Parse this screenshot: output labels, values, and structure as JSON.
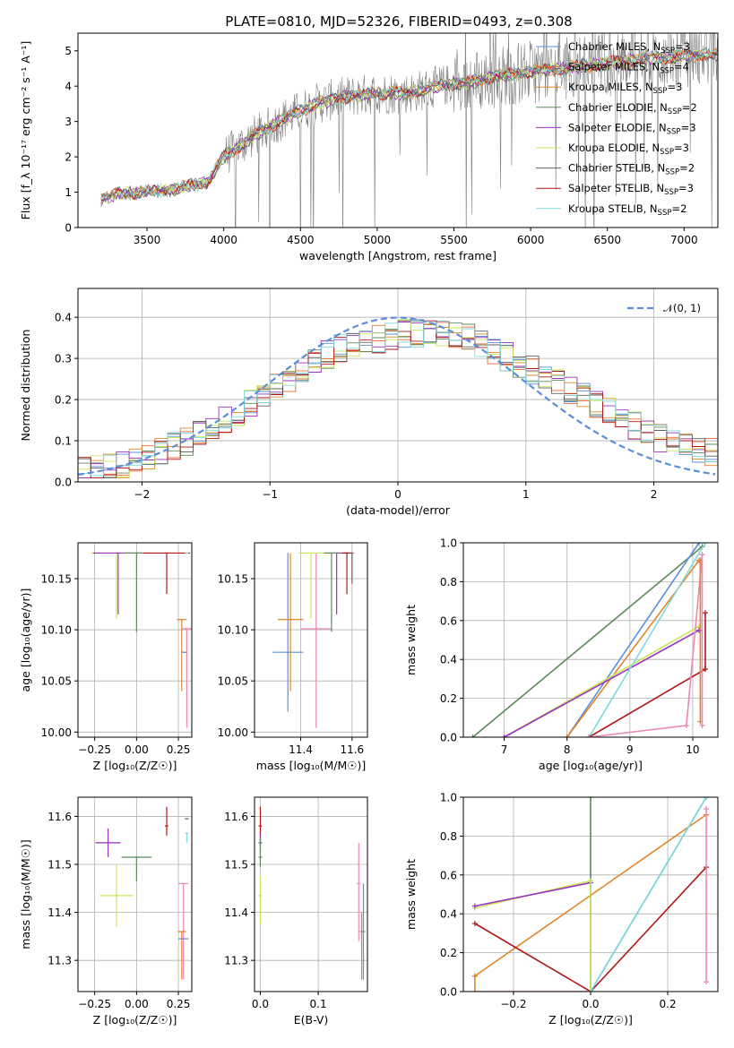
{
  "figure": {
    "title": "PLATE=0810, MJD=52326, FIBERID=0493, z=0.308"
  },
  "chart_data": [
    {
      "id": "spectrum",
      "type": "line",
      "xlabel": "wavelength [Angstrom, rest frame]",
      "ylabel": "Flux [f_λ 10⁻¹⁷ erg cm⁻² s⁻¹ A⁻¹]",
      "xlim": [
        3050,
        7220
      ],
      "ylim": [
        0,
        5.5
      ],
      "xticks": [
        "3500",
        "4000",
        "4500",
        "5000",
        "5500",
        "6000",
        "6500",
        "7000"
      ],
      "yticks": [
        "0",
        "1",
        "2",
        "3",
        "4",
        "5"
      ],
      "grid": false,
      "legend_position": "top-right",
      "data_anchor": {
        "x": [
          3200,
          3300,
          3500,
          3700,
          3900,
          4000,
          4200,
          4400,
          4600,
          4800,
          5000,
          5200,
          5400,
          5600,
          5800,
          6000,
          6200,
          6400,
          6600,
          6800,
          7000,
          7200
        ],
        "y": [
          0.8,
          0.95,
          1.0,
          1.1,
          1.3,
          2.0,
          2.6,
          3.1,
          3.5,
          3.7,
          3.8,
          3.8,
          4.0,
          4.1,
          4.3,
          4.4,
          4.5,
          4.6,
          4.7,
          4.8,
          4.85,
          4.9
        ]
      },
      "series": [
        {
          "name": "Chabrier MILES, N_SSP=3",
          "color": "#5b8fd9"
        },
        {
          "name": "Salpeter MILES, N_SSP=4",
          "color": "#ee6a2a"
        },
        {
          "name": "Kroupa MILES, N_SSP=3",
          "color": "#e0862b"
        },
        {
          "name": "Chabrier ELODIE, N_SSP=2",
          "color": "#5c8a5c"
        },
        {
          "name": "Salpeter ELODIE, N_SSP=3",
          "color": "#9d30c1"
        },
        {
          "name": "Kroupa ELODIE, N_SSP=3",
          "color": "#c8e65a"
        },
        {
          "name": "Chabrier STELIB, N_SSP=2",
          "color": "#606060"
        },
        {
          "name": "Salpeter STELIB, N_SSP=3",
          "color": "#b01818"
        },
        {
          "name": "Kroupa STELIB, N_SSP=2",
          "color": "#7ed9dc"
        }
      ],
      "legend_labels": [
        {
          "base": "Chabrier MILES, N",
          "sub": "SSP",
          "tail": "=3"
        },
        {
          "base": "Salpeter MILES, N",
          "sub": "SSP",
          "tail": "=4"
        },
        {
          "base": "Kroupa MILES, N",
          "sub": "SSP",
          "tail": "=3"
        },
        {
          "base": "Chabrier ELODIE, N",
          "sub": "SSP",
          "tail": "=2"
        },
        {
          "base": "Salpeter ELODIE, N",
          "sub": "SSP",
          "tail": "=3"
        },
        {
          "base": "Kroupa ELODIE, N",
          "sub": "SSP",
          "tail": "=3"
        },
        {
          "base": "Chabrier STELIB, N",
          "sub": "SSP",
          "tail": "=2"
        },
        {
          "base": "Salpeter STELIB, N",
          "sub": "SSP",
          "tail": "=3"
        },
        {
          "base": "Kroupa STELIB, N",
          "sub": "SSP",
          "tail": "=2"
        }
      ]
    },
    {
      "id": "residuals",
      "type": "line",
      "xlabel": "(data-model)/error",
      "ylabel": "Normed distribution",
      "xlim": [
        -2.5,
        2.5
      ],
      "ylim": [
        0,
        0.47
      ],
      "xticks": [
        "−2",
        "−1",
        "0",
        "1",
        "2"
      ],
      "yticks": [
        "0.0",
        "0.1",
        "0.2",
        "0.3",
        "0.4"
      ],
      "grid": true,
      "legend_position": "top-right",
      "reference_curve": {
        "name": "𝒩(0, 1)",
        "color": "#5b8fd9",
        "style": "dashed",
        "mu": 0,
        "sigma": 1
      },
      "histogram_envelope": {
        "x": [
          -2.5,
          -2.0,
          -1.5,
          -1.0,
          -0.5,
          0.0,
          0.5,
          1.0,
          1.5,
          2.0,
          2.5
        ],
        "y": [
          0.025,
          0.05,
          0.12,
          0.22,
          0.32,
          0.36,
          0.36,
          0.28,
          0.2,
          0.11,
          0.07
        ]
      }
    },
    {
      "id": "age-vs-Z",
      "type": "scatter",
      "xlabel": "Z [log₁₀(Z/Z☉)]",
      "ylabel": "age  [log₁₀(age/yr)]",
      "xlim": [
        -0.35,
        0.33
      ],
      "ylim": [
        9.995,
        10.185
      ],
      "xticks": [
        "−0.25",
        "0.00",
        "0.25"
      ],
      "yticks": [
        "10.00",
        "10.05",
        "10.10",
        "10.15"
      ],
      "grid": true,
      "errorbars": [
        {
          "x": 0.285,
          "y": 10.078,
          "dx": 0.04,
          "dy_lo": 0.0,
          "dy_hi": 0.0,
          "color": "#5b8fd9"
        },
        {
          "x": 0.27,
          "y": 10.11,
          "dx": 0.06,
          "dy_lo": 0.07,
          "dy_hi": 0.0,
          "color": "#e0862b"
        },
        {
          "x": 0.3,
          "y": 10.101,
          "dx": 0.06,
          "dy_lo": 0.097,
          "dy_hi": 0.0,
          "color": "#ee87b6"
        },
        {
          "x": -0.12,
          "y": 10.175,
          "dx": 0.3,
          "dy_lo": 0.064,
          "dy_hi": 0.0,
          "color": "#c8e65a"
        },
        {
          "x": -0.11,
          "y": 10.175,
          "dx": 0.3,
          "dy_lo": 0.06,
          "dy_hi": 0.0,
          "color": "#9d30c1"
        },
        {
          "x": 0.0,
          "y": 10.175,
          "dx": 0.15,
          "dy_lo": 0.077,
          "dy_hi": 0.0,
          "color": "#5c8a5c"
        },
        {
          "x": 0.18,
          "y": 10.175,
          "dx": 0.28,
          "dy_lo": 0.04,
          "dy_hi": 0.0,
          "color": "#b01818"
        },
        {
          "x": 0.3,
          "y": 10.175,
          "dx": 0.0,
          "dy_lo": 0.0,
          "dy_hi": 0.0,
          "color": "#7ed9dc"
        }
      ]
    },
    {
      "id": "age-vs-mass",
      "type": "scatter",
      "xlabel": "mass [log₁₀(M/M☉)]",
      "ylabel": "",
      "xlim": [
        11.22,
        11.66
      ],
      "ylim": [
        9.995,
        10.185
      ],
      "xticks": [
        "11.4",
        "11.6"
      ],
      "yticks": [
        "10.00",
        "10.05",
        "10.10",
        "10.15"
      ],
      "grid": true,
      "errorbars": [
        {
          "x": 11.35,
          "y": 10.078,
          "dx": 0.12,
          "dy_lo": 0.058,
          "dy_hi": 0.097,
          "color": "#5b8fd9"
        },
        {
          "x": 11.36,
          "y": 10.11,
          "dx": 0.1,
          "dy_lo": 0.07,
          "dy_hi": 0.065,
          "color": "#e0862b"
        },
        {
          "x": 11.46,
          "y": 10.101,
          "dx": 0.12,
          "dy_lo": 0.097,
          "dy_hi": 0.074,
          "color": "#ee87b6"
        },
        {
          "x": 11.44,
          "y": 10.175,
          "dx": 0.1,
          "dy_lo": 0.064,
          "dy_hi": 0.0,
          "color": "#c8e65a"
        },
        {
          "x": 11.54,
          "y": 10.175,
          "dx": 0.09,
          "dy_lo": 0.06,
          "dy_hi": 0.0,
          "color": "#9d30c1"
        },
        {
          "x": 11.52,
          "y": 10.175,
          "dx": 0.06,
          "dy_lo": 0.077,
          "dy_hi": 0.0,
          "color": "#5c8a5c"
        },
        {
          "x": 11.58,
          "y": 10.175,
          "dx": 0.04,
          "dy_lo": 0.04,
          "dy_hi": 0.0,
          "color": "#b01818"
        },
        {
          "x": 11.6,
          "y": 10.175,
          "dx": 0.0,
          "dy_lo": 0.03,
          "dy_hi": 0.0,
          "color": "#606060"
        }
      ]
    },
    {
      "id": "massweight-vs-age",
      "type": "line",
      "xlabel": "age  [log₁₀(age/yr)]",
      "ylabel": "mass weight",
      "xlim": [
        6.35,
        10.4
      ],
      "ylim": [
        0,
        1.0
      ],
      "xticks": [
        "7",
        "8",
        "9",
        "10"
      ],
      "yticks": [
        "0.0",
        "0.2",
        "0.4",
        "0.6",
        "0.8",
        "1.0"
      ],
      "grid": true,
      "series": [
        {
          "color": "#5c8a5c",
          "x": [
            6.5,
            10.15
          ],
          "y": [
            0.0,
            0.98
          ]
        },
        {
          "color": "#5b8fd9",
          "x": [
            8.0,
            10.1
          ],
          "y": [
            0.0,
            1.0
          ]
        },
        {
          "color": "#e0862b",
          "x": [
            8.0,
            10.1
          ],
          "y": [
            0.0,
            0.91
          ]
        },
        {
          "color": "#c8e65a",
          "x": [
            7.0,
            10.1
          ],
          "y": [
            0.0,
            0.57
          ]
        },
        {
          "color": "#9d30c1",
          "x": [
            7.0,
            10.1
          ],
          "y": [
            0.0,
            0.55
          ]
        },
        {
          "color": "#7ed9dc",
          "x": [
            8.35,
            10.2
          ],
          "y": [
            0.0,
            1.0
          ]
        },
        {
          "color": "#b01818",
          "x": [
            8.35,
            10.2
          ],
          "y": [
            0.0,
            0.35
          ]
        },
        {
          "color": "#ee87b6",
          "x": [
            8.35,
            9.9,
            10.15
          ],
          "y": [
            0.0,
            0.06,
            0.94
          ]
        }
      ],
      "vertical_markers": [
        {
          "color": "#e0862b",
          "x": 10.12,
          "y": [
            0.08,
            0.91
          ]
        },
        {
          "color": "#b01818",
          "x": 10.2,
          "y": [
            0.35,
            0.64
          ]
        },
        {
          "color": "#ee87b6",
          "x": 10.15,
          "y": [
            0.06,
            0.94
          ]
        }
      ]
    },
    {
      "id": "mass-vs-Z",
      "type": "scatter",
      "xlabel": "Z [log₁₀(Z/Z☉)]",
      "ylabel": "mass [log₁₀(M/M☉)]",
      "xlim": [
        -0.35,
        0.33
      ],
      "ylim": [
        11.235,
        11.64
      ],
      "xticks": [
        "−0.25",
        "0.00",
        "0.25"
      ],
      "yticks": [
        "11.3",
        "11.4",
        "11.5",
        "11.6"
      ],
      "grid": true,
      "errorbars": [
        {
          "x": -0.17,
          "y": 11.545,
          "dx": 0.15,
          "dy_lo": 0.03,
          "dy_hi": 0.03,
          "color": "#9d30c1"
        },
        {
          "x": 0.0,
          "y": 11.515,
          "dx": 0.18,
          "dy_lo": 0.05,
          "dy_hi": 0.0,
          "color": "#5c8a5c"
        },
        {
          "x": -0.12,
          "y": 11.435,
          "dx": 0.2,
          "dy_lo": 0.065,
          "dy_hi": 0.065,
          "color": "#c8e65a"
        },
        {
          "x": 0.18,
          "y": 11.58,
          "dx": 0.0,
          "dy_lo": 0.02,
          "dy_hi": 0.04,
          "color": "#b01818"
        },
        {
          "x": 0.3,
          "y": 11.595,
          "dx": 0.0,
          "dy_lo": 0.0,
          "dy_hi": 0.0,
          "color": "#606060"
        },
        {
          "x": 0.3,
          "y": 11.565,
          "dx": 0.0,
          "dy_lo": 0.02,
          "dy_hi": 0.0,
          "color": "#7ed9dc"
        },
        {
          "x": 0.28,
          "y": 11.46,
          "dx": 0.06,
          "dy_lo": 0.2,
          "dy_hi": 0.0,
          "color": "#ee87b6"
        },
        {
          "x": 0.27,
          "y": 11.36,
          "dx": 0.05,
          "dy_lo": 0.1,
          "dy_hi": 0.0,
          "color": "#e0862b"
        },
        {
          "x": 0.28,
          "y": 11.345,
          "dx": 0.06,
          "dy_lo": 0.0,
          "dy_hi": 0.0,
          "color": "#5b8fd9"
        }
      ]
    },
    {
      "id": "mass-vs-ebv",
      "type": "scatter",
      "xlabel": "E(B-V)",
      "ylabel": "",
      "xlim": [
        -0.01,
        0.185
      ],
      "ylim": [
        11.235,
        11.64
      ],
      "xticks": [
        "0.0",
        "0.1"
      ],
      "yticks": [
        "11.3",
        "11.4",
        "11.5",
        "11.6"
      ],
      "grid": true,
      "errorbars": [
        {
          "x": 0.0,
          "y": 11.58,
          "dx": 0.0,
          "dy_lo": 0.04,
          "dy_hi": 0.04,
          "color": "#b01818"
        },
        {
          "x": 0.0,
          "y": 11.545,
          "dx": 0.0,
          "dy_lo": 0.02,
          "dy_hi": 0.02,
          "color": "#9d30c1"
        },
        {
          "x": 0.0,
          "y": 11.515,
          "dx": 0.0,
          "dy_lo": 0.02,
          "dy_hi": 0.04,
          "color": "#5c8a5c"
        },
        {
          "x": 0.0,
          "y": 11.435,
          "dx": 0.0,
          "dy_lo": 0.06,
          "dy_hi": 0.04,
          "color": "#c8e65a"
        },
        {
          "x": 0.17,
          "y": 11.46,
          "dx": 0.0,
          "dy_lo": 0.12,
          "dy_hi": 0.085,
          "color": "#ee87b6"
        },
        {
          "x": 0.175,
          "y": 11.36,
          "dx": 0.0,
          "dy_lo": 0.1,
          "dy_hi": 0.04,
          "color": "#e0862b"
        },
        {
          "x": 0.178,
          "y": 11.36,
          "dx": 0.0,
          "dy_lo": 0.1,
          "dy_hi": 0.1,
          "color": "#5b8fd9"
        }
      ]
    },
    {
      "id": "massweight-vs-Z",
      "type": "line",
      "xlabel": "Z [log₁₀(Z/Z☉)]",
      "ylabel": "mass weight",
      "xlim": [
        -0.33,
        0.33
      ],
      "ylim": [
        0,
        1.0
      ],
      "xticks": [
        "−0.2",
        "0.0",
        "0.2"
      ],
      "yticks": [
        "0.0",
        "0.2",
        "0.4",
        "0.6",
        "0.8",
        "1.0"
      ],
      "grid": true,
      "series": [
        {
          "color": "#c8e65a",
          "x": [
            -0.3,
            0.0
          ],
          "y": [
            0.43,
            0.57
          ]
        },
        {
          "color": "#9d30c1",
          "x": [
            -0.3,
            0.0
          ],
          "y": [
            0.44,
            0.56
          ]
        },
        {
          "color": "#e0862b",
          "x": [
            -0.3,
            0.3
          ],
          "y": [
            0.08,
            0.91
          ]
        },
        {
          "color": "#b01818",
          "x": [
            -0.3,
            0.0,
            0.3
          ],
          "y": [
            0.35,
            0.0,
            0.64
          ]
        },
        {
          "color": "#5b8fd9",
          "x": [
            0.0,
            0.3
          ],
          "y": [
            0.0,
            1.0
          ]
        },
        {
          "color": "#7ed9dc",
          "x": [
            0.0,
            0.3
          ],
          "y": [
            0.0,
            1.0
          ]
        },
        {
          "color": "#ee87b6",
          "x": [
            -0.3,
            0.0
          ],
          "y": [
            0.0,
            0.0
          ]
        }
      ],
      "vertical_markers": [
        {
          "color": "#5c8a5c",
          "x": 0.0,
          "y": [
            0.0,
            1.0
          ]
        },
        {
          "color": "#c8e65a",
          "x": 0.0,
          "y": [
            0.0,
            0.57
          ]
        },
        {
          "color": "#ee87b6",
          "x": 0.3,
          "y": [
            0.05,
            0.94
          ]
        },
        {
          "color": "#e0862b",
          "x": -0.3,
          "y": [
            0.0,
            0.08
          ]
        }
      ]
    }
  ]
}
